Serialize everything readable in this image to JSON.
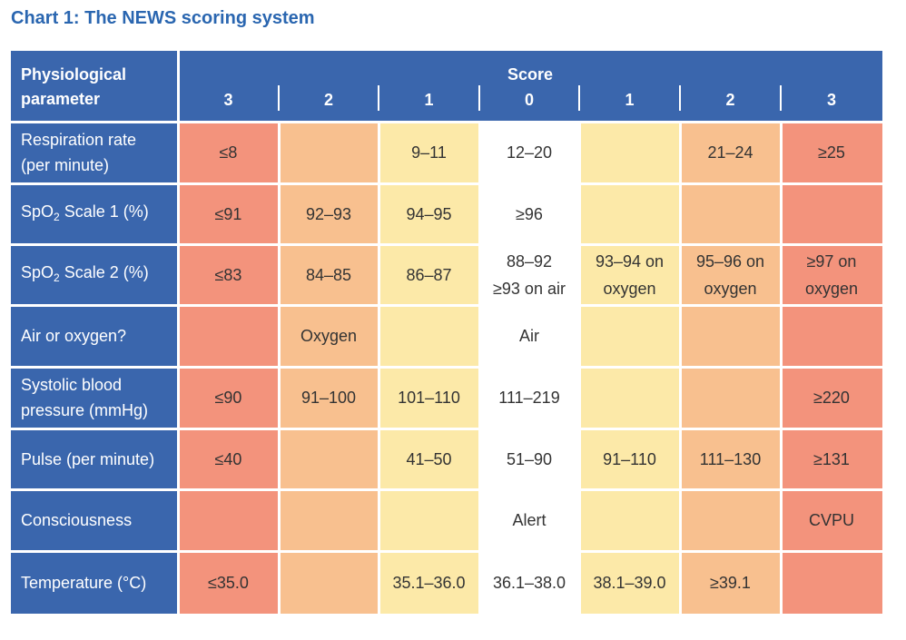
{
  "title": "Chart 1:  The NEWS scoring system",
  "colors": {
    "header_blue": "#3a66ad",
    "title_blue": "#2a66b0",
    "score_3": "#f3937c",
    "score_2": "#f8c08f",
    "score_1": "#fce9a8",
    "score_0": "#ffffff"
  },
  "header": {
    "parameter_line1": "Physiological",
    "parameter_line2": "parameter",
    "score_label": "Score",
    "scores": [
      "3",
      "2",
      "1",
      "0",
      "1",
      "2",
      "3"
    ]
  },
  "rows": [
    {
      "param_line1": "Respiration rate",
      "param_line2": "(per minute)",
      "cells": [
        {
          "l1": "≤8"
        },
        {
          "l1": ""
        },
        {
          "l1": "9–11"
        },
        {
          "l1": "12–20"
        },
        {
          "l1": ""
        },
        {
          "l1": "21–24"
        },
        {
          "l1": "≥25"
        }
      ]
    },
    {
      "param_pre": "SpO",
      "param_sub": "2",
      "param_post": " Scale 1 (%)",
      "cells": [
        {
          "l1": "≤91"
        },
        {
          "l1": "92–93"
        },
        {
          "l1": "94–95"
        },
        {
          "l1": "≥96"
        },
        {
          "l1": ""
        },
        {
          "l1": ""
        },
        {
          "l1": ""
        }
      ]
    },
    {
      "param_pre": "SpO",
      "param_sub": "2",
      "param_post": " Scale 2 (%)",
      "cells": [
        {
          "l1": "≤83"
        },
        {
          "l1": "84–85"
        },
        {
          "l1": "86–87"
        },
        {
          "l1": "88–92",
          "l2": "≥93 on air"
        },
        {
          "l1": "93–94 on",
          "l2": "oxygen"
        },
        {
          "l1": "95–96 on",
          "l2": "oxygen"
        },
        {
          "l1": "≥97 on",
          "l2": "oxygen"
        }
      ]
    },
    {
      "param_line1": "Air or oxygen?",
      "cells": [
        {
          "l1": ""
        },
        {
          "l1": "Oxygen"
        },
        {
          "l1": ""
        },
        {
          "l1": "Air"
        },
        {
          "l1": ""
        },
        {
          "l1": ""
        },
        {
          "l1": ""
        }
      ]
    },
    {
      "param_line1": "Systolic blood",
      "param_line2": "pressure (mmHg)",
      "cells": [
        {
          "l1": "≤90"
        },
        {
          "l1": "91–100"
        },
        {
          "l1": "101–110"
        },
        {
          "l1": "111–219"
        },
        {
          "l1": ""
        },
        {
          "l1": ""
        },
        {
          "l1": "≥220"
        }
      ]
    },
    {
      "param_line1": "Pulse (per minute)",
      "cells": [
        {
          "l1": "≤40"
        },
        {
          "l1": ""
        },
        {
          "l1": "41–50"
        },
        {
          "l1": "51–90"
        },
        {
          "l1": "91–110"
        },
        {
          "l1": "111–130"
        },
        {
          "l1": "≥131"
        }
      ]
    },
    {
      "param_line1": "Consciousness",
      "cells": [
        {
          "l1": ""
        },
        {
          "l1": ""
        },
        {
          "l1": ""
        },
        {
          "l1": "Alert"
        },
        {
          "l1": ""
        },
        {
          "l1": ""
        },
        {
          "l1": "CVPU"
        }
      ]
    },
    {
      "param_line1": "Temperature (°C)",
      "cells": [
        {
          "l1": "≤35.0"
        },
        {
          "l1": ""
        },
        {
          "l1": "35.1–36.0"
        },
        {
          "l1": "36.1–38.0"
        },
        {
          "l1": "38.1–39.0"
        },
        {
          "l1": "≥39.1"
        },
        {
          "l1": ""
        }
      ]
    }
  ]
}
